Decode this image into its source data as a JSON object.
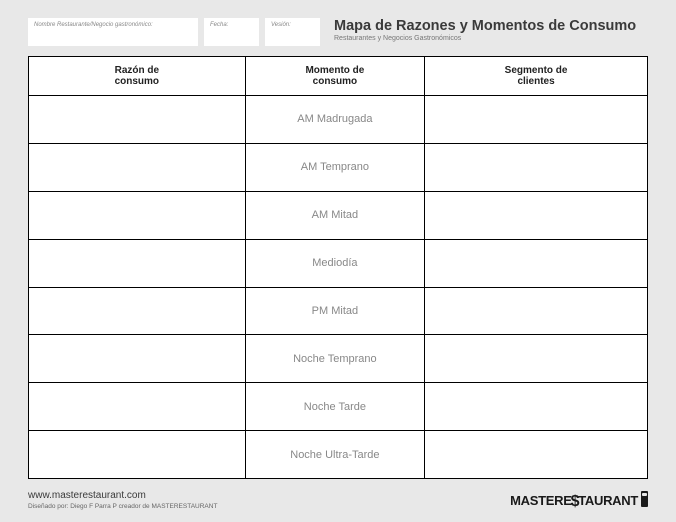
{
  "header": {
    "fields": {
      "name_label": "Nombre Restaurante/Negocio gastronómico:",
      "date_label": "Fecha:",
      "version_label": "Vesión:"
    },
    "title": "Mapa de Razones y Momentos de Consumo",
    "subtitle": "Restaurantes y Negocios Gastronómicos"
  },
  "table": {
    "columns": {
      "razon": "Razón de\nconsumo",
      "momento": "Momento de\nconsumo",
      "segmento": "Segmento de\nclientes"
    },
    "rows": [
      {
        "razon": "",
        "momento": "AM Madrugada",
        "segmento": ""
      },
      {
        "razon": "",
        "momento": "AM Temprano",
        "segmento": ""
      },
      {
        "razon": "",
        "momento": "AM Mitad",
        "segmento": ""
      },
      {
        "razon": "",
        "momento": "Mediodía",
        "segmento": ""
      },
      {
        "razon": "",
        "momento": "PM Mitad",
        "segmento": ""
      },
      {
        "razon": "",
        "momento": "Noche Temprano",
        "segmento": ""
      },
      {
        "razon": "",
        "momento": "Noche Tarde",
        "segmento": ""
      },
      {
        "razon": "",
        "momento": "Noche Ultra-Tarde",
        "segmento": ""
      }
    ]
  },
  "footer": {
    "url": "www.masterestaurant.com",
    "credit": "Diseñado por: Diego F Parra P creador de MASTERESTAURANT",
    "logo_part1": "MASTERE",
    "logo_s": "$",
    "logo_part2": "TAURANT"
  }
}
